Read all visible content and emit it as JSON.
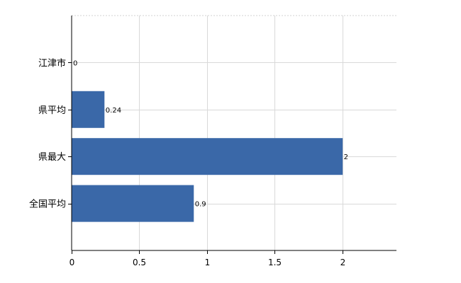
{
  "chart_data": {
    "type": "bar",
    "orientation": "horizontal",
    "categories": [
      "江津市",
      "県平均",
      "県最大",
      "全国平均"
    ],
    "values": [
      0,
      0.24,
      2,
      0.9
    ],
    "data_labels": [
      "0",
      "0.24",
      "2",
      "0.9"
    ],
    "xlim": [
      0,
      2.4
    ],
    "x_ticks": [
      0,
      0.5,
      1,
      1.5,
      2
    ],
    "x_tick_labels": [
      "0",
      "0.5",
      "1",
      "1.5",
      "2"
    ],
    "title": "",
    "xlabel": "",
    "ylabel": "",
    "grid": true,
    "legend": "none",
    "bar_color": "#3a68a8"
  }
}
